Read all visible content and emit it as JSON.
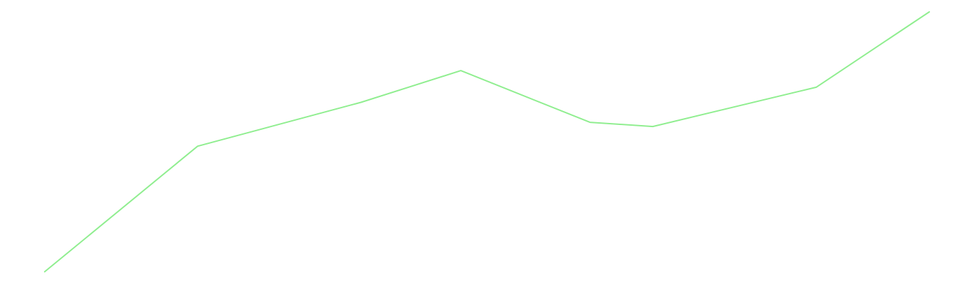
{
  "chart_data": {
    "type": "line",
    "x": [
      0,
      1,
      2,
      3,
      4,
      5,
      6,
      7
    ],
    "series": [
      {
        "values": [
          0,
          0.483,
          0.652,
          0.774,
          0.575,
          0.559,
          0.71,
          1.0
        ],
        "color": "#90ee90"
      }
    ],
    "xlim": [
      0,
      7
    ],
    "ylim": [
      0,
      1
    ],
    "grid": false,
    "axes": false,
    "legend": "none"
  }
}
